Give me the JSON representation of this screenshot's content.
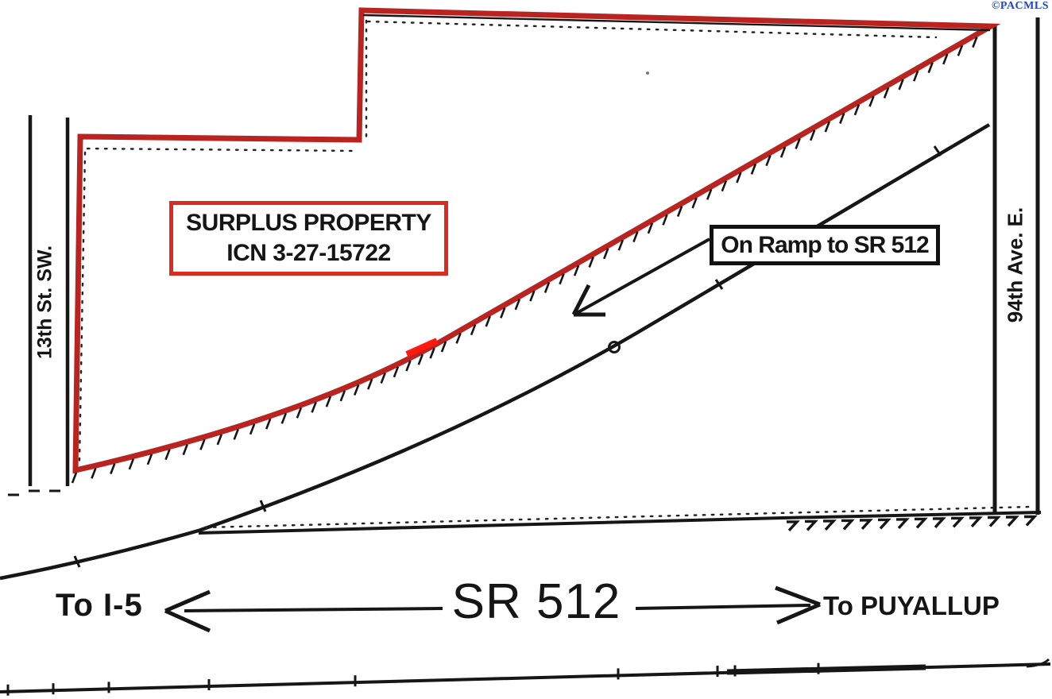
{
  "watermark": {
    "text": "©PACMLS"
  },
  "property_label": {
    "line1": "SURPLUS PROPERTY",
    "line2": "ICN 3-27-15722"
  },
  "ramp_label": {
    "text": "On Ramp to SR 512"
  },
  "streets": {
    "left": "13th St. SW.",
    "right": "94th Ave. E."
  },
  "highway": {
    "name": "SR 512",
    "west": "To I-5",
    "east": "To PUYALLUP"
  },
  "colors": {
    "red": "#b92420",
    "redbright": "#ff1a0d",
    "boxred": "#d92b20",
    "ink": "#161616",
    "blue": "#2444c4"
  }
}
